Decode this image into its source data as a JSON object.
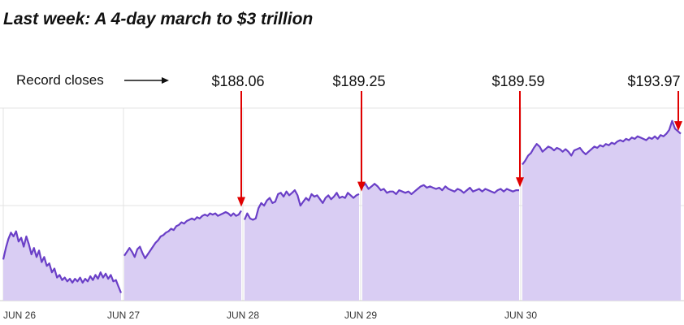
{
  "chart_data": {
    "type": "area",
    "title": "Last week: A 4-day march to $3 trillion",
    "xlabel": "",
    "ylabel": "",
    "x_ticks": [
      "JUN 26",
      "JUN 27",
      "JUN 28",
      "JUN 29",
      "JUN 30"
    ],
    "ylim": [
      181,
      196
    ],
    "grid": true,
    "colors": {
      "line": "#6a3fc7",
      "fill": "#d9cdf3",
      "arrow": "#e00000",
      "grid": "#e3e3e3"
    },
    "annotation_label": "Record closes",
    "record_closes": [
      {
        "day": "JUN 27",
        "label": "$188.06",
        "value": 188.06
      },
      {
        "day": "JUN 28",
        "label": "$189.25",
        "value": 189.25
      },
      {
        "day": "JUN 29",
        "label": "$189.59",
        "value": 189.59
      },
      {
        "day": "JUN 30",
        "label": "$193.97",
        "value": 193.97
      }
    ],
    "series": [
      {
        "day": "JUN 26",
        "values": [
          184.2,
          185.1,
          185.8,
          186.3,
          186.0,
          186.4,
          185.6,
          185.9,
          185.2,
          186.0,
          185.4,
          184.6,
          185.1,
          184.4,
          184.9,
          184.0,
          184.4,
          183.7,
          183.9,
          183.2,
          183.5,
          182.8,
          183.0,
          182.6,
          182.8,
          182.5,
          182.7,
          182.4,
          182.7,
          182.5,
          182.8,
          182.4,
          182.7,
          182.5,
          182.9,
          182.6,
          183.0,
          182.7,
          183.2,
          182.8,
          183.1,
          182.7,
          183.0,
          182.5,
          182.6,
          182.1,
          181.6
        ]
      },
      {
        "day": "JUN 27",
        "values": [
          184.5,
          184.8,
          185.1,
          184.8,
          184.4,
          185.0,
          185.2,
          184.7,
          184.3,
          184.6,
          184.9,
          185.2,
          185.5,
          185.7,
          186.0,
          186.1,
          186.3,
          186.4,
          186.6,
          186.5,
          186.8,
          186.9,
          187.1,
          187.0,
          187.2,
          187.3,
          187.4,
          187.3,
          187.5,
          187.4,
          187.6,
          187.7,
          187.6,
          187.8,
          187.7,
          187.8,
          187.6,
          187.7,
          187.8,
          187.9,
          187.8,
          187.6,
          187.8,
          187.6,
          187.7,
          188.0
        ]
      },
      {
        "day": "JUN 28",
        "values": [
          187.3,
          187.8,
          187.4,
          187.3,
          187.4,
          188.2,
          188.6,
          188.4,
          188.8,
          189.0,
          188.6,
          188.7,
          189.3,
          189.4,
          189.1,
          189.5,
          189.2,
          189.4,
          189.6,
          189.2,
          188.4,
          188.7,
          189.0,
          188.8,
          189.3,
          189.1,
          189.2,
          188.9,
          188.6,
          189.0,
          189.2,
          188.9,
          189.1,
          189.4,
          189.0,
          189.1,
          189.0,
          189.4,
          189.2,
          189.0,
          189.2,
          189.3
        ]
      },
      {
        "day": "JUN 29",
        "values": [
          189.9,
          190.1,
          189.7,
          189.9,
          190.1,
          189.9,
          189.6,
          189.7,
          189.4,
          189.5,
          189.5,
          189.3,
          189.6,
          189.5,
          189.4,
          189.5,
          189.3,
          189.5,
          189.7,
          189.9,
          190.0,
          189.8,
          189.9,
          189.8,
          189.7,
          189.8,
          189.6,
          189.9,
          189.7,
          189.6,
          189.5,
          189.7,
          189.6,
          189.4,
          189.6,
          189.8,
          189.5,
          189.6,
          189.7,
          189.5,
          189.7,
          189.6,
          189.5,
          189.4,
          189.6,
          189.7,
          189.5,
          189.7,
          189.6,
          189.5,
          189.6,
          189.6
        ]
      },
      {
        "day": "JUN 30",
        "values": [
          191.6,
          191.9,
          192.3,
          192.5,
          192.9,
          193.2,
          193.0,
          192.6,
          192.8,
          193.0,
          192.9,
          192.7,
          192.9,
          192.8,
          192.6,
          192.8,
          192.6,
          192.3,
          192.7,
          192.8,
          192.9,
          192.6,
          192.4,
          192.6,
          192.8,
          193.0,
          192.9,
          193.1,
          193.0,
          193.2,
          193.1,
          193.3,
          193.2,
          193.4,
          193.5,
          193.4,
          193.6,
          193.5,
          193.7,
          193.6,
          193.8,
          193.7,
          193.6,
          193.5,
          193.7,
          193.6,
          193.8,
          193.6,
          193.9,
          193.8,
          194.0,
          194.3,
          195.0,
          194.4,
          194.2,
          194.0
        ]
      }
    ]
  }
}
